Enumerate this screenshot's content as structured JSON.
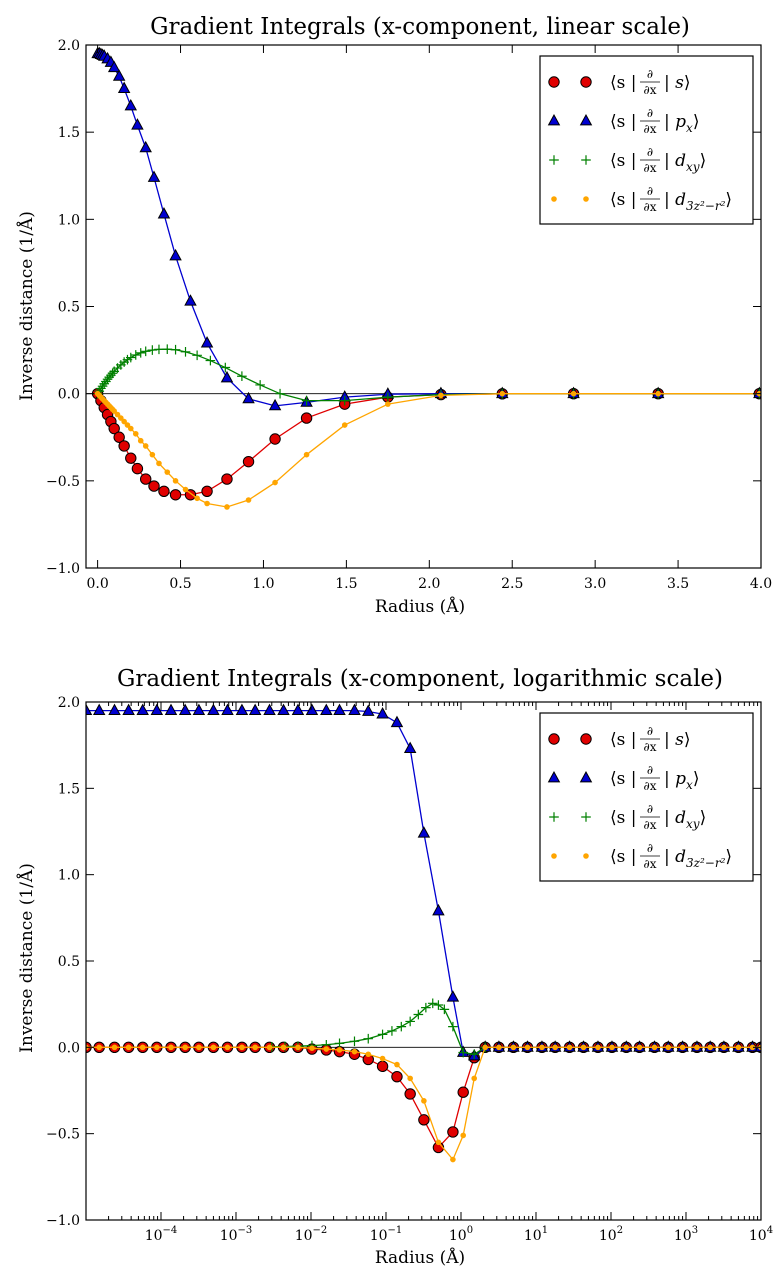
{
  "chart_data": [
    {
      "type": "line",
      "title": "Gradient Integrals (x-component, linear scale)",
      "xlabel": "Radius (Å)",
      "ylabel": "Inverse distance (1/Å)",
      "xscale": "linear",
      "xlim": [
        -0.07,
        4.0
      ],
      "ylim": [
        -1.0,
        2.0
      ],
      "x_ticks": [
        0.0,
        0.5,
        1.0,
        1.5,
        2.0,
        2.5,
        3.0,
        3.5,
        4.0
      ],
      "x_tick_labels": [
        "0.0",
        "0.5",
        "1.0",
        "1.5",
        "2.0",
        "2.5",
        "3.0",
        "3.5",
        "4.0"
      ],
      "y_ticks": [
        -1.0,
        -0.5,
        0.0,
        0.5,
        1.0,
        1.5,
        2.0
      ],
      "y_tick_labels": [
        "−1.0",
        "−0.5",
        "0.0",
        "0.5",
        "1.0",
        "1.5",
        "2.0"
      ],
      "grid": false,
      "legend_position": "top-right",
      "series": [
        {
          "name": "⟨s|∂/∂x|s⟩",
          "color": "#e00000",
          "marker": "circle",
          "x": [
            0.0,
            0.02,
            0.04,
            0.06,
            0.08,
            0.1,
            0.13,
            0.16,
            0.2,
            0.24,
            0.29,
            0.34,
            0.4,
            0.47,
            0.56,
            0.66,
            0.78,
            0.91,
            1.07,
            1.26,
            1.49,
            1.75,
            2.07,
            2.44,
            2.87,
            3.38,
            3.99
          ],
          "y": [
            0.0,
            -0.04,
            -0.08,
            -0.12,
            -0.16,
            -0.2,
            -0.25,
            -0.3,
            -0.37,
            -0.43,
            -0.49,
            -0.53,
            -0.56,
            -0.58,
            -0.58,
            -0.56,
            -0.49,
            -0.39,
            -0.26,
            -0.14,
            -0.06,
            -0.02,
            -0.005,
            -0.001,
            0.0,
            0.0,
            0.0
          ]
        },
        {
          "name": "⟨s|∂/∂x|p_x⟩",
          "color": "#0000d0",
          "marker": "triangle",
          "x": [
            0.0,
            0.01,
            0.02,
            0.03,
            0.04,
            0.06,
            0.08,
            0.1,
            0.13,
            0.16,
            0.2,
            0.24,
            0.29,
            0.34,
            0.4,
            0.47,
            0.56,
            0.66,
            0.78,
            0.91,
            1.07,
            1.26,
            1.49,
            1.75,
            2.07,
            2.44,
            2.87,
            3.38,
            3.99
          ],
          "y": [
            1.95,
            1.95,
            1.945,
            1.94,
            1.935,
            1.92,
            1.9,
            1.87,
            1.82,
            1.75,
            1.65,
            1.54,
            1.41,
            1.24,
            1.03,
            0.79,
            0.53,
            0.29,
            0.09,
            -0.03,
            -0.07,
            -0.05,
            -0.02,
            -0.003,
            0.0,
            0.0,
            0.0,
            0.0,
            0.0
          ]
        },
        {
          "name": "⟨s|∂/∂x|d_xy⟩",
          "color": "#008000",
          "marker": "plus",
          "x": [
            0.0,
            0.01,
            0.02,
            0.03,
            0.04,
            0.05,
            0.06,
            0.07,
            0.08,
            0.09,
            0.1,
            0.12,
            0.14,
            0.16,
            0.18,
            0.2,
            0.23,
            0.26,
            0.29,
            0.33,
            0.37,
            0.42,
            0.47,
            0.53,
            0.6,
            0.68,
            0.77,
            0.87,
            0.98,
            1.1,
            1.26,
            1.49,
            1.75,
            2.07,
            2.44,
            2.87,
            3.38,
            3.99
          ],
          "y": [
            0.0,
            0.014,
            0.03,
            0.043,
            0.057,
            0.07,
            0.083,
            0.095,
            0.106,
            0.117,
            0.128,
            0.147,
            0.165,
            0.181,
            0.195,
            0.207,
            0.222,
            0.234,
            0.243,
            0.25,
            0.254,
            0.255,
            0.252,
            0.24,
            0.22,
            0.19,
            0.15,
            0.1,
            0.05,
            0.0,
            -0.04,
            -0.04,
            -0.02,
            -0.005,
            0.0,
            0.0,
            0.0,
            0.0
          ]
        },
        {
          "name": "⟨s|∂/∂x|d_3z²−r²⟩",
          "color": "#ffa500",
          "marker": "dot",
          "x": [
            0.0,
            0.01,
            0.02,
            0.03,
            0.04,
            0.05,
            0.06,
            0.07,
            0.08,
            0.09,
            0.1,
            0.12,
            0.14,
            0.16,
            0.18,
            0.2,
            0.23,
            0.26,
            0.29,
            0.33,
            0.37,
            0.42,
            0.47,
            0.53,
            0.6,
            0.66,
            0.78,
            0.91,
            1.07,
            1.26,
            1.49,
            1.75,
            2.07,
            2.44,
            2.87,
            3.38,
            3.99
          ],
          "y": [
            0.0,
            -0.01,
            -0.02,
            -0.03,
            -0.04,
            -0.05,
            -0.06,
            -0.07,
            -0.08,
            -0.09,
            -0.1,
            -0.12,
            -0.14,
            -0.16,
            -0.18,
            -0.2,
            -0.23,
            -0.27,
            -0.3,
            -0.35,
            -0.4,
            -0.45,
            -0.5,
            -0.55,
            -0.6,
            -0.63,
            -0.65,
            -0.61,
            -0.51,
            -0.35,
            -0.18,
            -0.06,
            -0.01,
            0.0,
            0.0,
            0.0,
            0.0
          ]
        }
      ]
    },
    {
      "type": "line",
      "title": "Gradient Integrals (x-component, logarithmic scale)",
      "xlabel": "Radius (Å)",
      "ylabel": "Inverse distance (1/Å)",
      "xscale": "log",
      "xlim": [
        1e-05,
        10000
      ],
      "ylim": [
        -1.0,
        2.0
      ],
      "x_ticks": [
        0.0001,
        0.001,
        0.01,
        0.1,
        1,
        10,
        100,
        1000,
        10000
      ],
      "x_tick_labels": [
        {
          "base": "10",
          "exp": "−4"
        },
        {
          "base": "10",
          "exp": "−3"
        },
        {
          "base": "10",
          "exp": "−2"
        },
        {
          "base": "10",
          "exp": "−1"
        },
        {
          "base": "10",
          "exp": "0"
        },
        {
          "base": "10",
          "exp": "1"
        },
        {
          "base": "10",
          "exp": "2"
        },
        {
          "base": "10",
          "exp": "3"
        },
        {
          "base": "10",
          "exp": "4"
        }
      ],
      "y_ticks": [
        -1.0,
        -0.5,
        0.0,
        0.5,
        1.0,
        1.5,
        2.0
      ],
      "y_tick_labels": [
        "−1.0",
        "−0.5",
        "0.0",
        "0.5",
        "1.0",
        "1.5",
        "2.0"
      ],
      "grid": false,
      "legend_position": "top-right",
      "series": [
        {
          "name": "⟨s|∂/∂x|s⟩",
          "color": "#e00000",
          "marker": "circle",
          "x": [
            1e-05,
            1.5e-05,
            2.4e-05,
            3.7e-05,
            5.7e-05,
            8.8e-05,
            0.000136,
            0.00021,
            0.00032,
            0.0005,
            0.00077,
            0.0012,
            0.0018,
            0.0028,
            0.0043,
            0.0067,
            0.0103,
            0.016,
            0.024,
            0.038,
            0.058,
            0.09,
            0.14,
            0.21,
            0.32,
            0.5,
            0.78,
            1.07,
            1.5,
            2.1,
            3.2,
            5,
            7.7,
            12,
            18,
            28,
            43,
            67,
            103,
            160,
            240,
            380,
            580,
            900,
            1400,
            2100,
            3200,
            5000,
            7700,
            10000
          ],
          "y": [
            0.0,
            0.0,
            0.0,
            0.0,
            0.0,
            0.0,
            0.0,
            0.0,
            0.0,
            0.0,
            0.0,
            0.0,
            0.0,
            0.0,
            0.0,
            0.0,
            -0.01,
            -0.015,
            -0.025,
            -0.04,
            -0.07,
            -0.11,
            -0.17,
            -0.27,
            -0.42,
            -0.58,
            -0.49,
            -0.26,
            -0.06,
            0.0,
            0.0,
            0.0,
            0.0,
            0.0,
            0.0,
            0.0,
            0.0,
            0.0,
            0.0,
            0.0,
            0.0,
            0.0,
            0.0,
            0.0,
            0.0,
            0.0,
            0.0,
            0.0,
            0.0,
            0.0
          ]
        },
        {
          "name": "⟨s|∂/∂x|p_x⟩",
          "color": "#0000d0",
          "marker": "triangle",
          "x": [
            1e-05,
            1.5e-05,
            2.4e-05,
            3.7e-05,
            5.7e-05,
            8.8e-05,
            0.000136,
            0.00021,
            0.00032,
            0.0005,
            0.00077,
            0.0012,
            0.0018,
            0.0028,
            0.0043,
            0.0067,
            0.0103,
            0.016,
            0.024,
            0.038,
            0.058,
            0.09,
            0.14,
            0.21,
            0.32,
            0.5,
            0.78,
            1.07,
            1.5,
            2.1,
            3.2,
            5,
            7.7,
            12,
            18,
            28,
            43,
            67,
            103,
            160,
            240,
            380,
            580,
            900,
            1400,
            2100,
            3200,
            5000,
            7700,
            10000
          ],
          "y": [
            1.95,
            1.95,
            1.95,
            1.95,
            1.95,
            1.95,
            1.95,
            1.95,
            1.95,
            1.95,
            1.95,
            1.95,
            1.95,
            1.95,
            1.95,
            1.95,
            1.95,
            1.95,
            1.95,
            1.95,
            1.945,
            1.93,
            1.88,
            1.73,
            1.24,
            0.79,
            0.29,
            -0.03,
            -0.05,
            0.0,
            0.0,
            0.0,
            0.0,
            0.0,
            0.0,
            0.0,
            0.0,
            0.0,
            0.0,
            0.0,
            0.0,
            0.0,
            0.0,
            0.0,
            0.0,
            0.0,
            0.0,
            0.0,
            0.0,
            0.0
          ]
        },
        {
          "name": "⟨s|∂/∂x|d_xy⟩",
          "color": "#008000",
          "marker": "plus",
          "x": [
            0.003,
            0.0045,
            0.0067,
            0.0103,
            0.016,
            0.024,
            0.038,
            0.058,
            0.09,
            0.12,
            0.16,
            0.21,
            0.27,
            0.34,
            0.42,
            0.5,
            0.6,
            0.78,
            1.07,
            1.5,
            2.1
          ],
          "y": [
            0.003,
            0.005,
            0.007,
            0.01,
            0.015,
            0.023,
            0.035,
            0.05,
            0.075,
            0.095,
            0.12,
            0.15,
            0.19,
            0.23,
            0.255,
            0.245,
            0.22,
            0.12,
            -0.03,
            -0.04,
            0.0
          ]
        },
        {
          "name": "⟨s|∂/∂x|d_3z²−r²⟩",
          "color": "#ffa500",
          "marker": "dot",
          "x": [
            1e-05,
            1.5e-05,
            2.4e-05,
            3.7e-05,
            5.7e-05,
            8.8e-05,
            0.000136,
            0.00021,
            0.00032,
            0.0005,
            0.00077,
            0.0012,
            0.0018,
            0.0028,
            0.0043,
            0.0067,
            0.0103,
            0.016,
            0.024,
            0.038,
            0.058,
            0.09,
            0.14,
            0.21,
            0.32,
            0.5,
            0.78,
            1.07,
            1.5,
            2.1,
            3.2,
            5,
            7.7,
            12,
            18,
            28,
            43,
            67,
            103,
            160,
            240,
            380,
            580,
            900,
            1400,
            2100,
            3200,
            5000,
            7700,
            10000
          ],
          "y": [
            0.0,
            0.0,
            0.0,
            0.0,
            0.0,
            0.0,
            0.0,
            0.0,
            0.0,
            0.0,
            0.0,
            0.0,
            0.0,
            0.0,
            0.0,
            0.0,
            -0.005,
            -0.01,
            -0.015,
            -0.025,
            -0.04,
            -0.065,
            -0.1,
            -0.18,
            -0.31,
            -0.55,
            -0.65,
            -0.51,
            -0.18,
            0.0,
            0.0,
            0.0,
            0.0,
            0.0,
            0.0,
            0.0,
            0.0,
            0.0,
            0.0,
            0.0,
            0.0,
            0.0,
            0.0,
            0.0,
            0.0,
            0.0,
            0.0,
            0.0,
            0.0,
            0.0
          ]
        }
      ]
    }
  ],
  "legend_parts": [
    {
      "open": "⟨s |",
      "frac_top": "∂",
      "frac_bottom": "∂x",
      "sep": "|",
      "base": "s",
      "sub": "",
      "sup": "",
      "close": "⟩"
    },
    {
      "open": "⟨s |",
      "frac_top": "∂",
      "frac_bottom": "∂x",
      "sep": "|",
      "base": "p",
      "sub": "x",
      "sup": "",
      "close": "⟩"
    },
    {
      "open": "⟨s |",
      "frac_top": "∂",
      "frac_bottom": "∂x",
      "sep": "|",
      "base": "d",
      "sub": "xy",
      "sup": "",
      "close": "⟩"
    },
    {
      "open": "⟨s |",
      "frac_top": "∂",
      "frac_bottom": "∂x",
      "sep": "|",
      "base": "d",
      "sub": "3z²−r²",
      "sup": "",
      "close": "⟩"
    }
  ]
}
